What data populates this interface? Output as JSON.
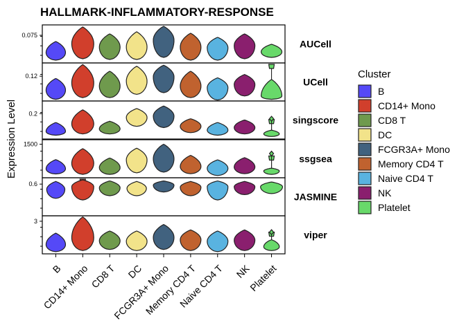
{
  "chart_data": {
    "type": "violin",
    "title": "HALLMARK-INFLAMMATORY-RESPONSE",
    "ylabel": "Expression Level",
    "xlabel": "",
    "categories": [
      "B",
      "CD14+ Mono",
      "CD8 T",
      "DC",
      "FCGR3A+ Mono",
      "Memory CD4 T",
      "Naive CD4 T",
      "NK",
      "Platelet"
    ],
    "colors": [
      "#5549f7",
      "#d13f2c",
      "#6f9a4d",
      "#f2e38a",
      "#41627f",
      "#c0622f",
      "#59b3e0",
      "#8a1f6e",
      "#68d96a"
    ],
    "legend": {
      "title": "Cluster",
      "position": "right"
    },
    "grid": false,
    "panels": [
      {
        "name": "AUCell",
        "ytick_labels": [
          "0.075"
        ],
        "ytick_values": [
          0.075
        ],
        "ylim": [
          0.035,
          0.09
        ],
        "violins": [
          {
            "min": 0.039,
            "max": 0.066,
            "mode": 0.05,
            "width": 0.75,
            "tail": 0.0,
            "outlier": null
          },
          {
            "min": 0.041,
            "max": 0.087,
            "mode": 0.063,
            "width": 0.85,
            "tail": 0.0,
            "outlier": null
          },
          {
            "min": 0.04,
            "max": 0.077,
            "mode": 0.058,
            "width": 0.8,
            "tail": 0.0,
            "outlier": null
          },
          {
            "min": 0.04,
            "max": 0.08,
            "mode": 0.058,
            "width": 0.8,
            "tail": 0.0,
            "outlier": null
          },
          {
            "min": 0.043,
            "max": 0.088,
            "mode": 0.068,
            "width": 0.8,
            "tail": 0.0,
            "outlier": null
          },
          {
            "min": 0.039,
            "max": 0.078,
            "mode": 0.058,
            "width": 0.8,
            "tail": 0.0,
            "outlier": null
          },
          {
            "min": 0.039,
            "max": 0.072,
            "mode": 0.057,
            "width": 0.8,
            "tail": 0.0,
            "outlier": null
          },
          {
            "min": 0.041,
            "max": 0.077,
            "mode": 0.06,
            "width": 0.8,
            "tail": 0.0,
            "outlier": null
          },
          {
            "min": 0.043,
            "max": 0.062,
            "mode": 0.051,
            "width": 0.8,
            "tail": 0.0,
            "outlier": null
          }
        ]
      },
      {
        "name": "UCell",
        "ytick_labels": [
          "0.12"
        ],
        "ytick_values": [
          0.12
        ],
        "ylim": [
          0.045,
          0.16
        ],
        "violins": [
          {
            "min": 0.05,
            "max": 0.113,
            "mode": 0.078,
            "width": 0.75,
            "tail": 0.0,
            "outlier": null
          },
          {
            "min": 0.055,
            "max": 0.155,
            "mode": 0.1,
            "width": 0.85,
            "tail": 0.0,
            "outlier": null
          },
          {
            "min": 0.055,
            "max": 0.135,
            "mode": 0.09,
            "width": 0.8,
            "tail": 0.0,
            "outlier": null
          },
          {
            "min": 0.065,
            "max": 0.15,
            "mode": 0.105,
            "width": 0.8,
            "tail": 0.0,
            "outlier": null
          },
          {
            "min": 0.07,
            "max": 0.153,
            "mode": 0.118,
            "width": 0.8,
            "tail": 0.0,
            "outlier": null
          },
          {
            "min": 0.055,
            "max": 0.135,
            "mode": 0.09,
            "width": 0.8,
            "tail": 0.0,
            "outlier": null
          },
          {
            "min": 0.048,
            "max": 0.115,
            "mode": 0.085,
            "width": 0.8,
            "tail": 0.0,
            "outlier": null
          },
          {
            "min": 0.06,
            "max": 0.125,
            "mode": 0.095,
            "width": 0.8,
            "tail": 0.0,
            "outlier": null
          },
          {
            "min": 0.05,
            "max": 0.11,
            "mode": 0.06,
            "width": 0.8,
            "tail": 0.45,
            "outlier": null
          }
        ]
      },
      {
        "name": "singscore",
        "ytick_labels": [
          "0.2"
        ],
        "ytick_values": [
          0.2
        ],
        "ylim": [
          0.0,
          0.3
        ],
        "violins": [
          {
            "min": 0.03,
            "max": 0.13,
            "mode": 0.06,
            "width": 0.75,
            "tail": 0.0,
            "outlier": null
          },
          {
            "min": 0.04,
            "max": 0.23,
            "mode": 0.12,
            "width": 0.85,
            "tail": 0.0,
            "outlier": null
          },
          {
            "min": 0.04,
            "max": 0.14,
            "mode": 0.08,
            "width": 0.8,
            "tail": 0.0,
            "outlier": null
          },
          {
            "min": 0.1,
            "max": 0.24,
            "mode": 0.17,
            "width": 0.8,
            "tail": 0.0,
            "outlier": null
          },
          {
            "min": 0.09,
            "max": 0.26,
            "mode": 0.18,
            "width": 0.8,
            "tail": 0.0,
            "outlier": null
          },
          {
            "min": 0.05,
            "max": 0.16,
            "mode": 0.1,
            "width": 0.8,
            "tail": 0.0,
            "outlier": null
          },
          {
            "min": 0.03,
            "max": 0.13,
            "mode": 0.07,
            "width": 0.8,
            "tail": 0.0,
            "outlier": null
          },
          {
            "min": 0.04,
            "max": 0.15,
            "mode": 0.09,
            "width": 0.8,
            "tail": 0.0,
            "outlier": null
          },
          {
            "min": 0.02,
            "max": 0.07,
            "mode": 0.04,
            "width": 0.6,
            "tail": 0.28,
            "outlier": 0.16
          }
        ]
      },
      {
        "name": "ssgsea",
        "ytick_labels": [
          "1500"
        ],
        "ytick_values": [
          1500
        ],
        "ylim": [
          0,
          1700
        ],
        "violins": [
          {
            "min": 170,
            "max": 810,
            "mode": 400,
            "width": 0.75,
            "tail": 0.0,
            "outlier": null
          },
          {
            "min": 150,
            "max": 1300,
            "mode": 650,
            "width": 0.85,
            "tail": 0.0,
            "outlier": null
          },
          {
            "min": 150,
            "max": 880,
            "mode": 450,
            "width": 0.8,
            "tail": 0.0,
            "outlier": null
          },
          {
            "min": 220,
            "max": 1320,
            "mode": 800,
            "width": 0.8,
            "tail": 0.0,
            "outlier": null
          },
          {
            "min": 250,
            "max": 1500,
            "mode": 850,
            "width": 0.8,
            "tail": 0.0,
            "outlier": null
          },
          {
            "min": 180,
            "max": 1000,
            "mode": 500,
            "width": 0.8,
            "tail": 0.0,
            "outlier": null
          },
          {
            "min": 100,
            "max": 800,
            "mode": 420,
            "width": 0.8,
            "tail": 0.0,
            "outlier": null
          },
          {
            "min": 180,
            "max": 900,
            "mode": 480,
            "width": 0.8,
            "tail": 0.0,
            "outlier": null
          },
          {
            "min": 150,
            "max": 430,
            "mode": 300,
            "width": 0.6,
            "tail": 0.32,
            "outlier": 1080
          }
        ]
      },
      {
        "name": "JASMINE",
        "ytick_labels": [
          "0.6"
        ],
        "ytick_values": [
          0.6
        ],
        "ylim": [
          0.0,
          0.72
        ],
        "violins": [
          {
            "min": 0.33,
            "max": 0.65,
            "mode": 0.5,
            "width": 0.7,
            "tail": 0.0,
            "outlier": null
          },
          {
            "min": 0.3,
            "max": 0.68,
            "mode": 0.55,
            "width": 0.85,
            "tail": 0.25,
            "outlier": null
          },
          {
            "min": 0.38,
            "max": 0.66,
            "mode": 0.53,
            "width": 0.8,
            "tail": 0.0,
            "outlier": null
          },
          {
            "min": 0.38,
            "max": 0.65,
            "mode": 0.52,
            "width": 0.75,
            "tail": 0.0,
            "outlier": null
          },
          {
            "min": 0.45,
            "max": 0.66,
            "mode": 0.58,
            "width": 0.8,
            "tail": 0.0,
            "outlier": null
          },
          {
            "min": 0.38,
            "max": 0.65,
            "mode": 0.54,
            "width": 0.8,
            "tail": 0.0,
            "outlier": null
          },
          {
            "min": 0.3,
            "max": 0.66,
            "mode": 0.55,
            "width": 0.8,
            "tail": 0.0,
            "outlier": null
          },
          {
            "min": 0.4,
            "max": 0.65,
            "mode": 0.55,
            "width": 0.8,
            "tail": 0.0,
            "outlier": null
          },
          {
            "min": 0.42,
            "max": 0.64,
            "mode": 0.55,
            "width": 0.85,
            "tail": 0.0,
            "outlier": null
          }
        ]
      },
      {
        "name": "viper",
        "ytick_labels": [
          "3"
        ],
        "ytick_values": [
          3
        ],
        "ylim": [
          0.0,
          3.5
        ],
        "violins": [
          {
            "min": 0.2,
            "max": 1.9,
            "mode": 0.85,
            "width": 0.75,
            "tail": 0.0,
            "outlier": null
          },
          {
            "min": 0.3,
            "max": 3.4,
            "mode": 1.5,
            "width": 0.85,
            "tail": 0.0,
            "outlier": null
          },
          {
            "min": 0.4,
            "max": 2.1,
            "mode": 1.2,
            "width": 0.8,
            "tail": 0.0,
            "outlier": null
          },
          {
            "min": 0.3,
            "max": 2.1,
            "mode": 1.15,
            "width": 0.8,
            "tail": 0.0,
            "outlier": null
          },
          {
            "min": 0.4,
            "max": 2.7,
            "mode": 1.5,
            "width": 0.8,
            "tail": 0.0,
            "outlier": null
          },
          {
            "min": 0.3,
            "max": 2.2,
            "mode": 1.3,
            "width": 0.8,
            "tail": 0.0,
            "outlier": null
          },
          {
            "min": 0.2,
            "max": 2.1,
            "mode": 1.15,
            "width": 0.8,
            "tail": 0.0,
            "outlier": null
          },
          {
            "min": 0.3,
            "max": 2.2,
            "mode": 1.25,
            "width": 0.8,
            "tail": 0.0,
            "outlier": null
          },
          {
            "min": 0.3,
            "max": 1.3,
            "mode": 0.65,
            "width": 0.6,
            "tail": 0.2,
            "outlier": 2.0
          }
        ]
      }
    ]
  }
}
